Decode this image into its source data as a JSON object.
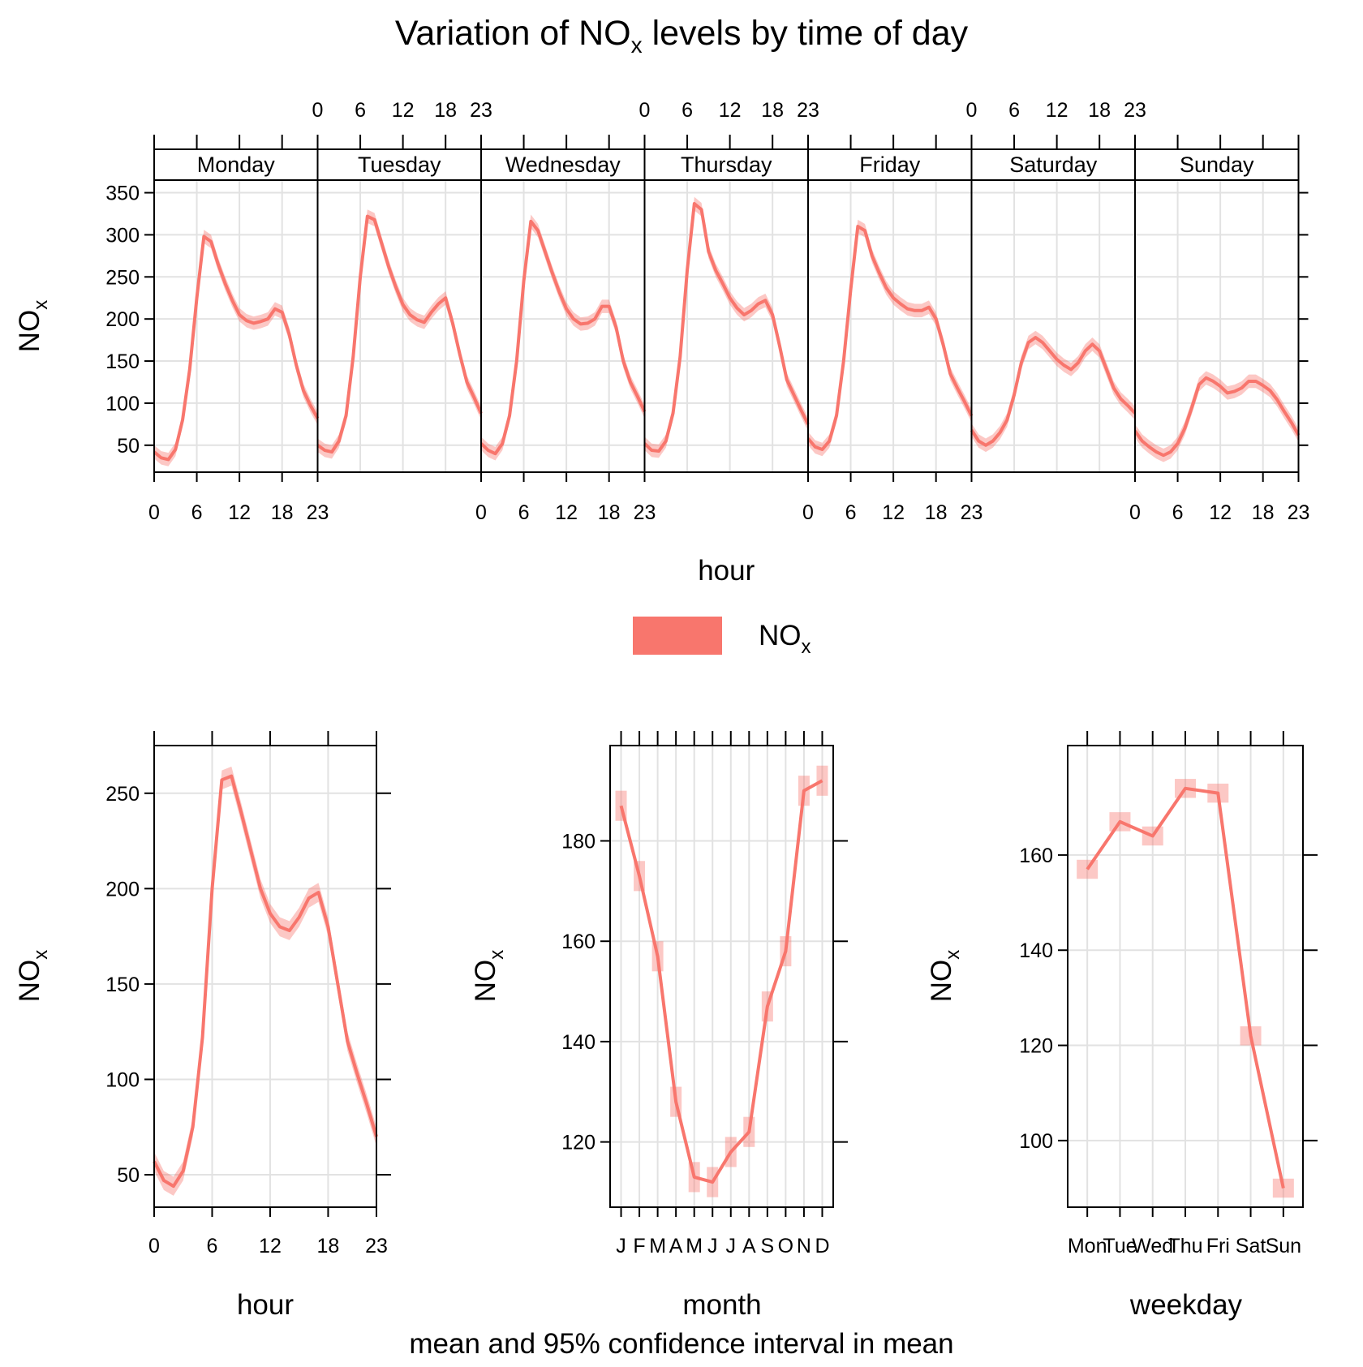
{
  "title": {
    "main": "Variation of NO",
    "sub": "x",
    "rest": " levels by time of day"
  },
  "subtitle": "mean and 95% confidence interval in mean",
  "legend": {
    "label": "NO",
    "sub": "x",
    "color": "#F8766D"
  },
  "colors": {
    "line": "#F8766D",
    "band": "#F8766D"
  },
  "chart_data": [
    {
      "type": "line",
      "name": "by-weekday-hour",
      "panels": [
        "Monday",
        "Tuesday",
        "Wednesday",
        "Thursday",
        "Friday",
        "Saturday",
        "Sunday"
      ],
      "x": [
        0,
        1,
        2,
        3,
        4,
        5,
        6,
        7,
        8,
        9,
        10,
        11,
        12,
        13,
        14,
        15,
        16,
        17,
        18,
        19,
        20,
        21,
        22,
        23
      ],
      "xticks": [
        0,
        6,
        12,
        18,
        23
      ],
      "xlabel": "hour",
      "ylabel": "NO",
      "ylabel_sub": "x",
      "ylim": [
        18,
        365
      ],
      "yticks": [
        50,
        100,
        150,
        200,
        250,
        300,
        350
      ],
      "ci_halfwidth": 8,
      "series": [
        {
          "panel": "Monday",
          "values": [
            42,
            35,
            33,
            45,
            80,
            140,
            225,
            298,
            292,
            265,
            242,
            222,
            205,
            198,
            195,
            197,
            200,
            212,
            208,
            182,
            145,
            115,
            97,
            82
          ]
        },
        {
          "panel": "Tuesday",
          "values": [
            50,
            44,
            42,
            55,
            85,
            155,
            250,
            322,
            318,
            290,
            262,
            238,
            217,
            205,
            199,
            196,
            208,
            218,
            225,
            195,
            158,
            125,
            107,
            88
          ]
        },
        {
          "panel": "Wednesday",
          "values": [
            52,
            44,
            40,
            52,
            85,
            150,
            245,
            316,
            305,
            280,
            255,
            232,
            212,
            200,
            194,
            195,
            200,
            215,
            215,
            190,
            150,
            125,
            108,
            90
          ]
        },
        {
          "panel": "Thursday",
          "values": [
            52,
            44,
            43,
            55,
            88,
            155,
            258,
            337,
            330,
            280,
            258,
            242,
            225,
            213,
            205,
            210,
            218,
            222,
            205,
            168,
            128,
            110,
            92,
            75
          ]
        },
        {
          "panel": "Friday",
          "values": [
            58,
            48,
            45,
            55,
            85,
            150,
            235,
            310,
            305,
            275,
            255,
            237,
            225,
            218,
            212,
            210,
            210,
            214,
            200,
            170,
            135,
            118,
            102,
            85
          ]
        },
        {
          "panel": "Saturday",
          "values": [
            68,
            55,
            50,
            55,
            65,
            80,
            110,
            148,
            172,
            178,
            172,
            162,
            152,
            145,
            140,
            148,
            162,
            170,
            162,
            140,
            118,
            105,
            97,
            88
          ]
        },
        {
          "panel": "Sunday",
          "values": [
            67,
            55,
            48,
            42,
            38,
            42,
            52,
            70,
            95,
            122,
            130,
            126,
            120,
            112,
            114,
            118,
            126,
            126,
            121,
            115,
            104,
            90,
            77,
            62
          ]
        }
      ]
    },
    {
      "type": "line",
      "name": "by-hour",
      "x": [
        0,
        1,
        2,
        3,
        4,
        5,
        6,
        7,
        8,
        9,
        10,
        11,
        12,
        13,
        14,
        15,
        16,
        17,
        18,
        19,
        20,
        21,
        22,
        23
      ],
      "xticks": [
        0,
        6,
        12,
        18,
        23
      ],
      "values": [
        57,
        47,
        44,
        52,
        75,
        122,
        200,
        257,
        259,
        240,
        220,
        200,
        187,
        180,
        178,
        185,
        195,
        198,
        180,
        150,
        120,
        103,
        87,
        70
      ],
      "ci_halfwidth": 5,
      "xlabel": "hour",
      "ylabel": "NO",
      "ylabel_sub": "x",
      "ylim": [
        33,
        275
      ],
      "yticks": [
        50,
        100,
        150,
        200,
        250
      ]
    },
    {
      "type": "line",
      "name": "by-month",
      "categories": [
        "J",
        "F",
        "M",
        "A",
        "M",
        "J",
        "J",
        "A",
        "S",
        "O",
        "N",
        "D"
      ],
      "values": [
        187,
        173,
        157,
        128,
        113,
        112,
        118,
        122,
        147,
        158,
        190,
        192
      ],
      "ci_halfwidth": 3,
      "xlabel": "month",
      "ylabel": "NO",
      "ylabel_sub": "x",
      "ylim": [
        107,
        199
      ],
      "yticks": [
        120,
        140,
        160,
        180
      ]
    },
    {
      "type": "line",
      "name": "by-weekday",
      "categories": [
        "Mon",
        "Tue",
        "Wed",
        "Thu",
        "Fri",
        "Sat",
        "Sun"
      ],
      "values": [
        157,
        167,
        164,
        174,
        173,
        122,
        90
      ],
      "ci_halfwidth": 2,
      "xlabel": "weekday",
      "ylabel": "NO",
      "ylabel_sub": "x",
      "ylim": [
        86,
        183
      ],
      "yticks": [
        100,
        120,
        140,
        160
      ]
    }
  ]
}
